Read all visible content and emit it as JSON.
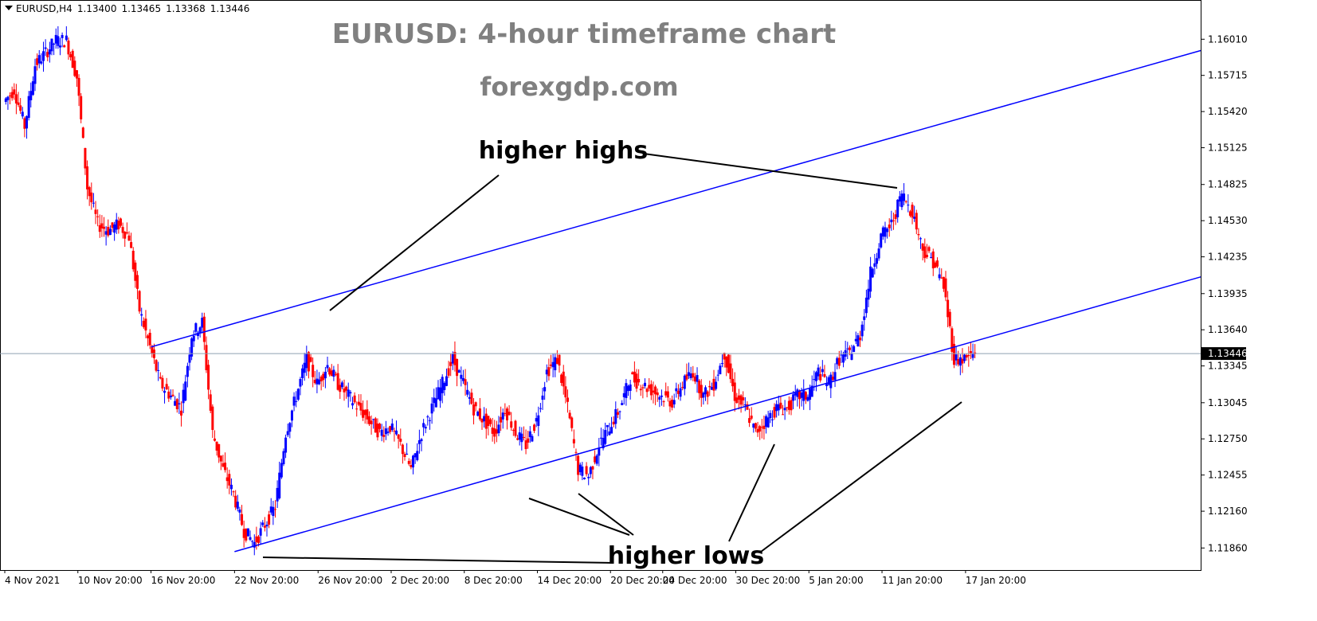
{
  "header": {
    "symbol": "EURUSD,H4",
    "open": "1.13400",
    "high": "1.13465",
    "low": "1.13368",
    "close": "1.13446"
  },
  "chart_data": {
    "type": "candlestick",
    "title": "EURUSD: 4-hour timeframe chart",
    "subtitle": "forexgdp.com",
    "ylim": [
      1.1168,
      1.1633
    ],
    "y_ticks": [
      "1.16010",
      "1.15715",
      "1.15420",
      "1.15125",
      "1.14825",
      "1.14530",
      "1.14235",
      "1.13935",
      "1.13640",
      "1.13345",
      "1.13045",
      "1.12750",
      "1.12455",
      "1.12160",
      "1.11860"
    ],
    "x_ticks": [
      "4 Nov 2021",
      "10 Nov 20:00",
      "16 Nov 20:00",
      "22 Nov 20:00",
      "26 Nov 20:00",
      "2 Dec 20:00",
      "8 Dec 20:00",
      "14 Dec 20:00",
      "20 Dec 20:00",
      "24 Dec 20:00",
      "30 Dec 20:00",
      "5 Jan 20:00",
      "11 Jan 20:00",
      "17 Jan 20:00"
    ],
    "current_price": "1.13446",
    "colors": {
      "bullish": "#0000ff",
      "bearish": "#ff0000",
      "trendline": "#0000ff",
      "price_line": "#8fa0b0",
      "annotation": "#000000",
      "title": "#808080"
    },
    "series": [
      {
        "name": "EURUSD H4 close",
        "points": [
          [
            "4 Nov 2021",
            1.155
          ],
          [
            "5 Nov",
            1.156
          ],
          [
            "6 Nov",
            1.153
          ],
          [
            "7 Nov",
            1.158
          ],
          [
            "8 Nov",
            1.159
          ],
          [
            "9 Nov",
            1.16
          ],
          [
            "10 Nov",
            1.16
          ],
          [
            "10 Nov 20:00",
            1.157
          ],
          [
            "11 Nov",
            1.148
          ],
          [
            "12 Nov",
            1.145
          ],
          [
            "13 Nov",
            1.1445
          ],
          [
            "14 Nov",
            1.145
          ],
          [
            "15 Nov",
            1.144
          ],
          [
            "16 Nov",
            1.138
          ],
          [
            "16 Nov 20:00",
            1.135
          ],
          [
            "17 Nov",
            1.132
          ],
          [
            "18 Nov",
            1.131
          ],
          [
            "19 Nov",
            1.13
          ],
          [
            "19 Nov 12:00",
            1.136
          ],
          [
            "20 Nov",
            1.137
          ],
          [
            "21 Nov",
            1.128
          ],
          [
            "22 Nov",
            1.125
          ],
          [
            "22 Nov 20:00",
            1.123
          ],
          [
            "23 Nov",
            1.12
          ],
          [
            "24 Nov",
            1.119
          ],
          [
            "24 Nov 12:00",
            1.1205
          ],
          [
            "25 Nov",
            1.122
          ],
          [
            "25 Nov 12:00",
            1.128
          ],
          [
            "26 Nov",
            1.131
          ],
          [
            "26 Nov 12:00",
            1.134
          ],
          [
            "26 Nov 20:00",
            1.132
          ],
          [
            "27 Nov",
            1.1335
          ],
          [
            "28 Nov",
            1.132
          ],
          [
            "29 Nov",
            1.131
          ],
          [
            "30 Nov",
            1.13
          ],
          [
            "1 Dec",
            1.129
          ],
          [
            "2 Dec",
            1.128
          ],
          [
            "2 Dec 20:00",
            1.1285
          ],
          [
            "3 Dec",
            1.127
          ],
          [
            "4 Dec",
            1.125
          ],
          [
            "5 Dec",
            1.128
          ],
          [
            "6 Dec",
            1.13
          ],
          [
            "7 Dec",
            1.132
          ],
          [
            "8 Dec",
            1.134
          ],
          [
            "8 Dec 20:00",
            1.132
          ],
          [
            "9 Dec",
            1.13
          ],
          [
            "10 Dec",
            1.129
          ],
          [
            "11 Dec",
            1.128
          ],
          [
            "12 Dec",
            1.13
          ],
          [
            "13 Dec",
            1.128
          ],
          [
            "14 Dec",
            1.127
          ],
          [
            "14 Dec 20:00",
            1.129
          ],
          [
            "15 Dec",
            1.133
          ],
          [
            "16 Dec",
            1.134
          ],
          [
            "17 Dec",
            1.13
          ],
          [
            "18 Dec",
            1.125
          ],
          [
            "19 Dec",
            1.1245
          ],
          [
            "20 Dec",
            1.127
          ],
          [
            "20 Dec 20:00",
            1.1285
          ],
          [
            "21 Dec",
            1.13
          ],
          [
            "22 Dec",
            1.1325
          ],
          [
            "23 Dec",
            1.132
          ],
          [
            "24 Dec",
            1.1315
          ],
          [
            "24 Dec 20:00",
            1.131
          ],
          [
            "25 Dec",
            1.1305
          ],
          [
            "26 Dec",
            1.132
          ],
          [
            "27 Dec",
            1.133
          ],
          [
            "28 Dec",
            1.131
          ],
          [
            "29 Dec",
            1.132
          ],
          [
            "30 Dec",
            1.1345
          ],
          [
            "30 Dec 20:00",
            1.131
          ],
          [
            "31 Dec",
            1.13
          ],
          [
            "1 Jan",
            1.128
          ],
          [
            "2 Jan",
            1.129
          ],
          [
            "3 Jan",
            1.13
          ],
          [
            "4 Jan",
            1.13
          ],
          [
            "5 Jan",
            1.131
          ],
          [
            "5 Jan 20:00",
            1.131
          ],
          [
            "6 Jan",
            1.133
          ],
          [
            "7 Jan",
            1.132
          ],
          [
            "8 Jan",
            1.134
          ],
          [
            "9 Jan",
            1.1345
          ],
          [
            "10 Jan",
            1.136
          ],
          [
            "11 Jan",
            1.141
          ],
          [
            "11 Jan 20:00",
            1.144
          ],
          [
            "12 Jan",
            1.145
          ],
          [
            "13 Jan",
            1.1475
          ],
          [
            "14 Jan",
            1.146
          ],
          [
            "15 Jan",
            1.143
          ],
          [
            "16 Jan",
            1.142
          ],
          [
            "17 Jan",
            1.14
          ],
          [
            "17 Jan 12:00",
            1.134
          ],
          [
            "17 Jan 20:00",
            1.134
          ],
          [
            "18 Jan",
            1.1345
          ]
        ]
      }
    ],
    "annotations": [
      {
        "id": "higher-highs-label",
        "text": "higher highs"
      },
      {
        "id": "higher-lows-label",
        "text": "higher lows"
      }
    ],
    "trendlines": [
      {
        "name": "upper channel",
        "from": [
          "16 Nov 20:00",
          1.135
        ],
        "to": [
          "18 Jan",
          1.154
        ]
      },
      {
        "name": "lower channel",
        "from": [
          "22 Nov 20:00",
          1.1183
        ],
        "to": [
          "18 Jan",
          1.1355
        ]
      }
    ]
  }
}
